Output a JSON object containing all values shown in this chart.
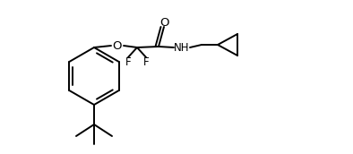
{
  "bg_color": "#ffffff",
  "line_color": "#000000",
  "line_width": 1.4,
  "font_size": 8.5,
  "fig_width": 3.94,
  "fig_height": 1.72,
  "dpi": 100,
  "xlim": [
    0,
    394
  ],
  "ylim": [
    0,
    172
  ]
}
